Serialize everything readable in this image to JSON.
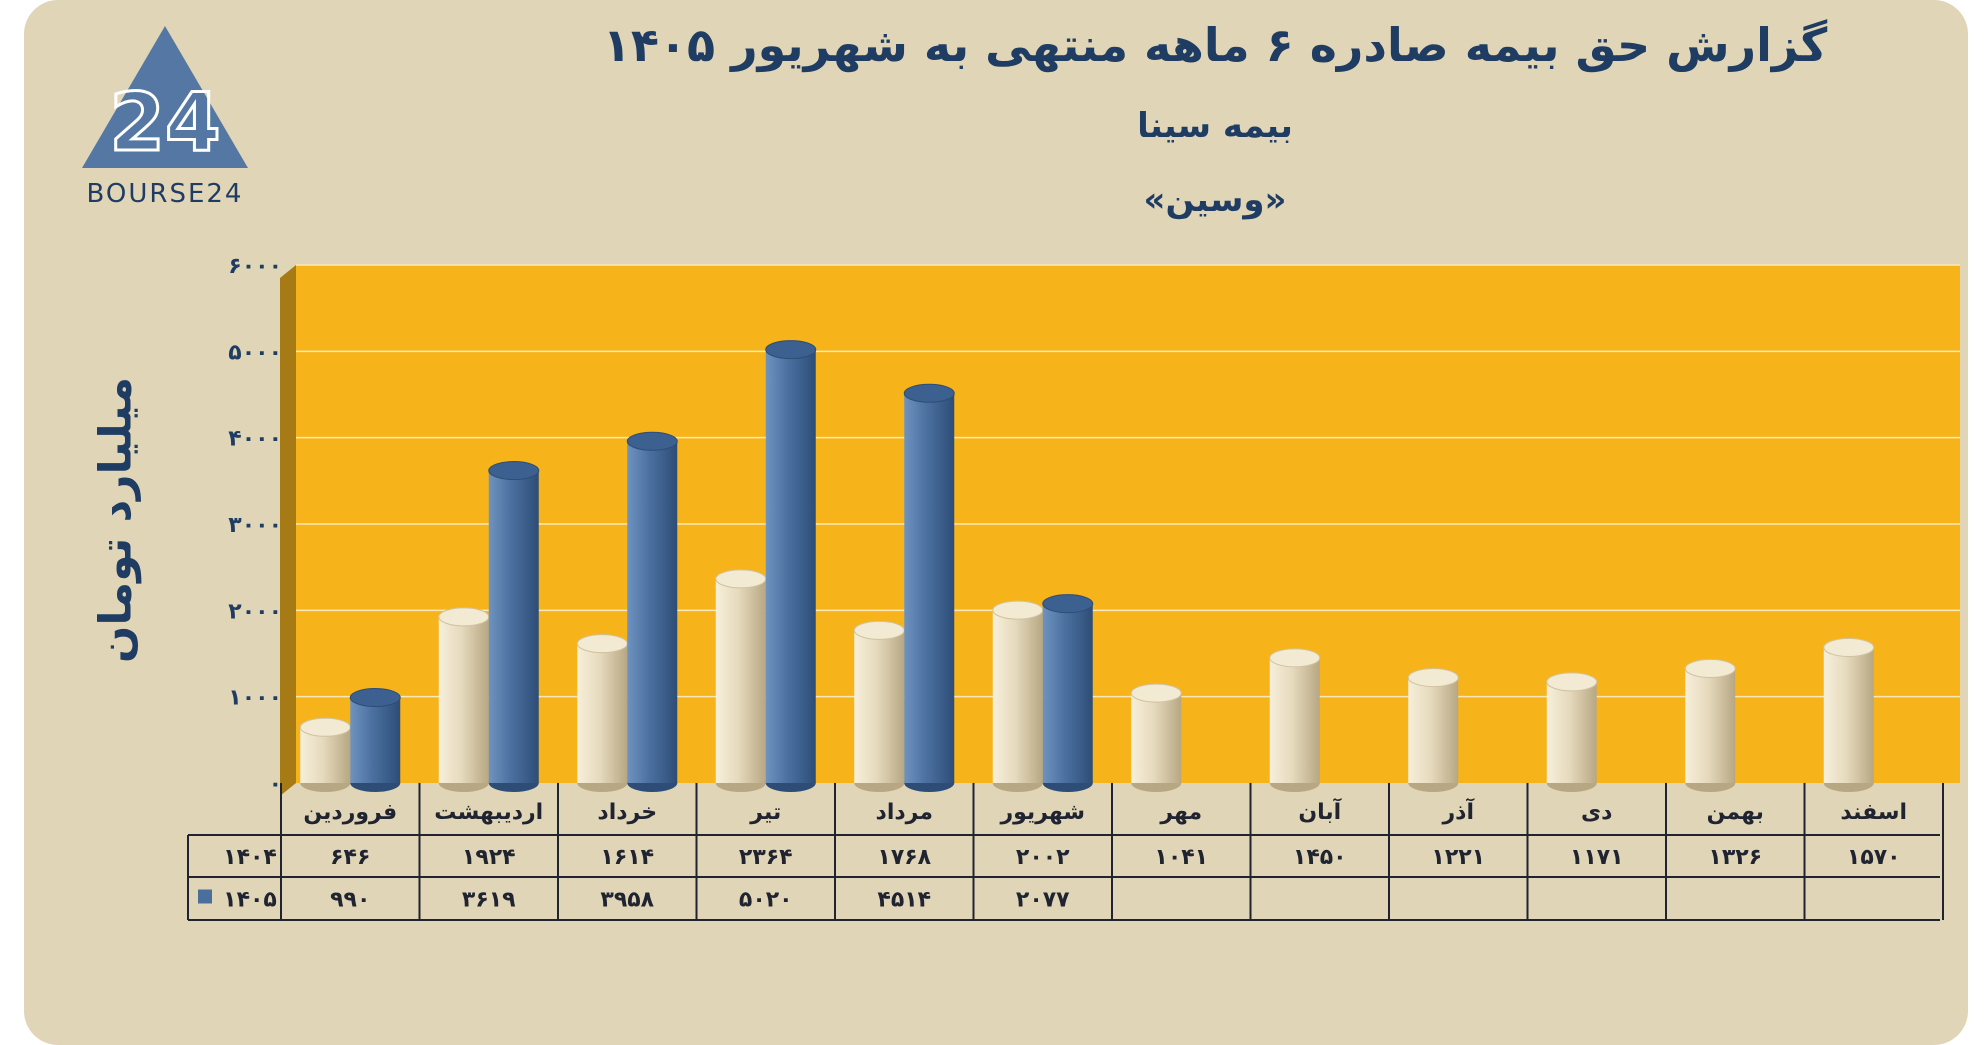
{
  "header": {
    "title": "گزارش  حق بیمه صادره ۶ ماهه منتهی به شهریور ۱۴۰۵",
    "subtitle": "بیمه سینا",
    "ticker": "«وسین»"
  },
  "logo": {
    "text": "BOURSE24",
    "mark": "24"
  },
  "colors": {
    "background": "#e1d5b8",
    "plot_area": "#f6b41a",
    "bar_1404": "#e7dcc0",
    "bar_1405": "#4a6f9c",
    "text": "#1f3c63"
  },
  "chart_data": {
    "type": "bar",
    "title": "گزارش  حق بیمه صادره ۶ ماهه منتهی به شهریور ۱۴۰۵",
    "subtitle": "بیمه سینا",
    "ylabel": "میلیارد تومان",
    "ylim": [
      0,
      6000
    ],
    "yticks": [
      0,
      1000,
      2000,
      3000,
      4000,
      5000,
      6000
    ],
    "ytick_labels": [
      "۰",
      "۱۰۰۰",
      "۲۰۰۰",
      "۳۰۰۰",
      "۴۰۰۰",
      "۵۰۰۰",
      "۶۰۰۰"
    ],
    "grid": true,
    "categories": [
      "فروردین",
      "اردیبهشت",
      "خرداد",
      "تیر",
      "مرداد",
      "شهریور",
      "مهر",
      "آبان",
      "آذر",
      "دی",
      "بهمن",
      "اسفند"
    ],
    "series": [
      {
        "name": "۱۴۰۴",
        "color": "#e7dcc0",
        "values": [
          646,
          1924,
          1614,
          2364,
          1768,
          2002,
          1041,
          1450,
          1221,
          1171,
          1326,
          1570
        ],
        "labels": [
          "۶۴۶",
          "۱۹۲۴",
          "۱۶۱۴",
          "۲۳۶۴",
          "۱۷۶۸",
          "۲۰۰۲",
          "۱۰۴۱",
          "۱۴۵۰",
          "۱۲۲۱",
          "۱۱۷۱",
          "۱۳۲۶",
          "۱۵۷۰"
        ]
      },
      {
        "name": "۱۴۰۵",
        "color": "#4a6f9c",
        "values": [
          990,
          3619,
          3958,
          5020,
          4514,
          2077,
          null,
          null,
          null,
          null,
          null,
          null
        ],
        "labels": [
          "۹۹۰",
          "۳۶۱۹",
          "۳۹۵۸",
          "۵۰۲۰",
          "۴۵۱۴",
          "۲۰۷۷",
          "",
          "",
          "",
          "",
          "",
          ""
        ]
      }
    ]
  }
}
